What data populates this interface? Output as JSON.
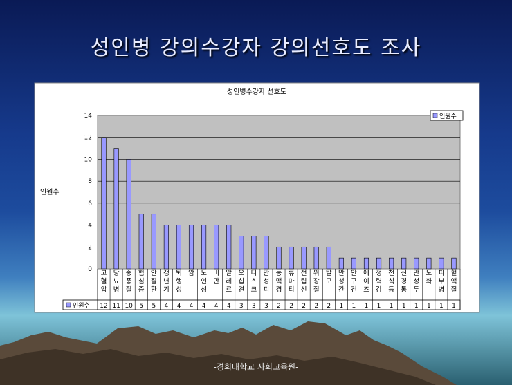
{
  "slide": {
    "title": "성인병 강의수강자 강의선호도 조사",
    "footer": "-경희대학교 사회교육원-"
  },
  "colors": {
    "bar": "#9999ff",
    "plot_bg": "#c0c0c0",
    "panel_bg": "#ffffff"
  },
  "chart_data": {
    "type": "bar",
    "title": "성인병수강자 선호도",
    "ylabel": "인원수",
    "xlabel": "",
    "ylim": [
      0,
      14
    ],
    "yticks": [
      0,
      2,
      4,
      6,
      8,
      10,
      12,
      14
    ],
    "grid": true,
    "legend": "top-right",
    "data_table": true,
    "categories": [
      "고혈압",
      "당뇨병",
      "중풍질",
      "협심증",
      "안질환",
      "갱년기",
      "퇴행성",
      "암",
      "노인성",
      "비만",
      "알레르",
      "오십견",
      "디스크",
      "만성피",
      "동맥경",
      "류마티",
      "전립선",
      "위장질",
      "탈모",
      "만성간",
      "안구건",
      "에이즈",
      "정력감",
      "천식등",
      "신경통",
      "만성두",
      "노화",
      "피부병",
      "혈액질"
    ],
    "series": [
      {
        "name": "인원수",
        "values": [
          12,
          11,
          10,
          5,
          5,
          4,
          4,
          4,
          4,
          4,
          4,
          3,
          3,
          3,
          2,
          2,
          2,
          2,
          2,
          1,
          1,
          1,
          1,
          1,
          1,
          1,
          1,
          1,
          1
        ]
      }
    ]
  }
}
